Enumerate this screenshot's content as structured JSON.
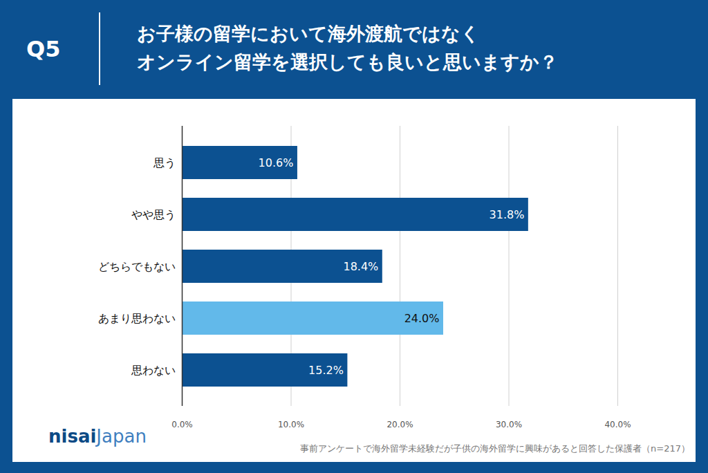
{
  "chart_data": {
    "type": "bar",
    "question": "Q5",
    "title": "お子様の留学において海外渡航ではなく\nオンライン留学を選択しても良いと思いますか？",
    "orientation": "horizontal",
    "categories": [
      "思う",
      "やや思う",
      "どちらでもない",
      "あまり思わない",
      "思わない"
    ],
    "values": [
      10.6,
      31.8,
      18.4,
      24.0,
      15.2
    ],
    "value_labels": [
      "10.6%",
      "31.8%",
      "18.4%",
      "24.0%",
      "15.2%"
    ],
    "colors": [
      "#0c5191",
      "#0c5191",
      "#0c5191",
      "#62b9ea",
      "#0c5191"
    ],
    "xlim": [
      0,
      40
    ],
    "xticks": [
      {
        "value": 0,
        "label": "0.0%"
      },
      {
        "value": 10,
        "label": "10.0%"
      },
      {
        "value": 20,
        "label": "20.0%"
      },
      {
        "value": 30,
        "label": "30.0%"
      },
      {
        "value": 40,
        "label": "40.0%"
      }
    ],
    "grid": true,
    "data_labels": true,
    "note": "事前アンケートで海外留学未経験だが子供の海外留学に興味があると回答した保護者（n=217）",
    "logo": [
      "nisai",
      "Japan"
    ]
  }
}
